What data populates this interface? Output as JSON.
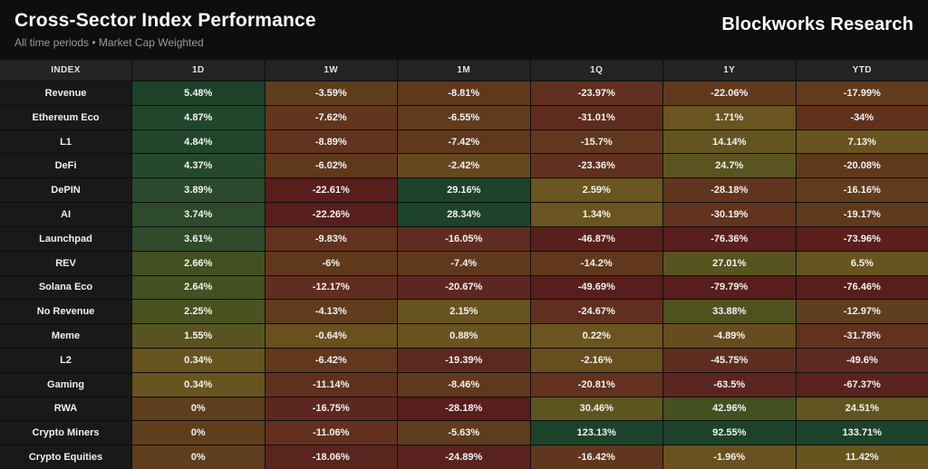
{
  "header": {
    "title": "Cross-Sector Index Performance",
    "subtitle": "All time periods • Market Cap Weighted",
    "brand": "Blockworks Research"
  },
  "table": {
    "columns": [
      "INDEX",
      "1D",
      "1W",
      "1M",
      "1Q",
      "1Y",
      "YTD"
    ],
    "rows": [
      {
        "index": "Revenue",
        "values": [
          "5.48%",
          "-3.59%",
          "-8.81%",
          "-23.97%",
          "-22.06%",
          "-17.99%"
        ]
      },
      {
        "index": "Ethereum Eco",
        "values": [
          "4.87%",
          "-7.62%",
          "-6.55%",
          "-31.01%",
          "1.71%",
          "-34%"
        ]
      },
      {
        "index": "L1",
        "values": [
          "4.84%",
          "-8.89%",
          "-7.42%",
          "-15.7%",
          "14.14%",
          "7.13%"
        ]
      },
      {
        "index": "DeFi",
        "values": [
          "4.37%",
          "-6.02%",
          "-2.42%",
          "-23.36%",
          "24.7%",
          "-20.08%"
        ]
      },
      {
        "index": "DePIN",
        "values": [
          "3.89%",
          "-22.61%",
          "29.16%",
          "2.59%",
          "-28.18%",
          "-16.16%"
        ]
      },
      {
        "index": "AI",
        "values": [
          "3.74%",
          "-22.26%",
          "28.34%",
          "1.34%",
          "-30.19%",
          "-19.17%"
        ]
      },
      {
        "index": "Launchpad",
        "values": [
          "3.61%",
          "-9.83%",
          "-16.05%",
          "-46.87%",
          "-76.36%",
          "-73.96%"
        ]
      },
      {
        "index": "REV",
        "values": [
          "2.66%",
          "-6%",
          "-7.4%",
          "-14.2%",
          "27.01%",
          "6.5%"
        ]
      },
      {
        "index": "Solana Eco",
        "values": [
          "2.64%",
          "-12.17%",
          "-20.67%",
          "-49.69%",
          "-79.79%",
          "-76.46%"
        ]
      },
      {
        "index": "No Revenue",
        "values": [
          "2.25%",
          "-4.13%",
          "2.15%",
          "-24.67%",
          "33.88%",
          "-12.97%"
        ]
      },
      {
        "index": "Meme",
        "values": [
          "1.55%",
          "-0.64%",
          "0.88%",
          "0.22%",
          "-4.89%",
          "-31.78%"
        ]
      },
      {
        "index": "L2",
        "values": [
          "0.34%",
          "-6.42%",
          "-19.39%",
          "-2.16%",
          "-45.75%",
          "-49.6%"
        ]
      },
      {
        "index": "Gaming",
        "values": [
          "0.34%",
          "-11.14%",
          "-8.46%",
          "-20.81%",
          "-63.5%",
          "-67.37%"
        ]
      },
      {
        "index": "RWA",
        "values": [
          "0%",
          "-16.75%",
          "-28.18%",
          "30.46%",
          "42.96%",
          "24.51%"
        ]
      },
      {
        "index": "Crypto Miners",
        "values": [
          "0%",
          "-11.06%",
          "-5.63%",
          "123.13%",
          "92.55%",
          "133.71%"
        ]
      },
      {
        "index": "Crypto Equities",
        "values": [
          "0%",
          "-18.06%",
          "-24.89%",
          "-16.42%",
          "-1.96%",
          "11.42%"
        ]
      }
    ]
  },
  "heatmap": {
    "gradient_stops": [
      [
        0.0,
        "#571E1C"
      ],
      [
        0.15,
        "#5D2820"
      ],
      [
        0.3,
        "#62331E"
      ],
      [
        0.42,
        "#5F3E1D"
      ],
      [
        0.5,
        "#6B541F"
      ],
      [
        0.62,
        "#5D5520"
      ],
      [
        0.72,
        "#47511F"
      ],
      [
        0.85,
        "#2B4A2C"
      ],
      [
        1.0,
        "#1C432A"
      ]
    ],
    "zero_position": 0.42,
    "header_bg": "#232323",
    "index_bg": "#191919",
    "page_bg": "#0E0E0E"
  }
}
